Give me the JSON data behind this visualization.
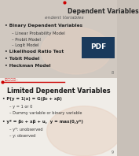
{
  "slide1": {
    "bg_color": "#d0c8c0",
    "title": "Dependent Variables",
    "subtitle": "endent Variables",
    "bullet1": "Binary Dependent Variables",
    "sub1a": "– Linear Probability Model",
    "sub1b": "– Probit Model",
    "sub1c": "– Logit Model",
    "bullet2": "Likelihood Ratio Test",
    "bullet3": "Tobit Model",
    "bullet4": "Heckman Model",
    "pdf_box_color": "#1a3a5c",
    "pdf_text": "PDF",
    "red_dot": "#cc0000"
  },
  "slide2": {
    "bg_color": "#f0ede8",
    "title": "Limited Dependent Variables",
    "logo_color": "#cc0000",
    "bullet1": "P(y = 1|x) = G(β₀ + xβ)",
    "sub1a": "– y = 1 or 0",
    "sub1b": "– Dummy variable or binary variable",
    "bullet2": "y* = β₀ + xβ + u,  y = max(0,y*)",
    "sub2a": "– y*: unobserved",
    "sub2b": "– y: observed"
  },
  "divider_color": "#888888",
  "watermark_color": "#e8d0c0"
}
